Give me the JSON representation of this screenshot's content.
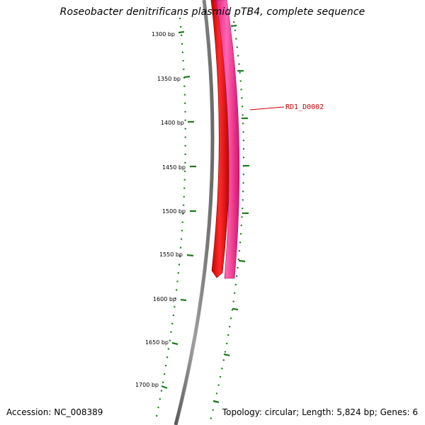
{
  "title": "Roseobacter denitrificans plasmid pTB4, complete sequence",
  "accession_label": "Accession: NC_008389",
  "summary_label": "Topology: circular; Length: 5,824 bp; Genes: 6",
  "tick_labels": [
    "1300 bp",
    "1350 bp",
    "1400 bp",
    "1450 bp",
    "1500 bp",
    "1550 bp",
    "1600 bp",
    "1650 bp",
    "1700 bp"
  ],
  "features": [
    {
      "name": "RD1_D0002",
      "color": "#ff3399",
      "strand": "forward"
    },
    {
      "name": "",
      "color": "#ff0000",
      "strand": "forward"
    }
  ],
  "colors": {
    "backbone": "#808080",
    "ticks": "#1f7a1f",
    "feature_label": "#cc0000"
  }
}
